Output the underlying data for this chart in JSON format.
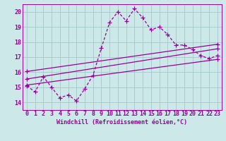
{
  "xlabel": "Windchill (Refroidissement éolien,°C)",
  "bg_color": "#cce8e8",
  "grid_color": "#aacccc",
  "line_color": "#990099",
  "ylim": [
    13.5,
    20.5
  ],
  "xlim": [
    -0.5,
    23.5
  ],
  "yticks": [
    14,
    15,
    16,
    17,
    18,
    19,
    20
  ],
  "xticks": [
    0,
    1,
    2,
    3,
    4,
    5,
    6,
    7,
    8,
    9,
    10,
    11,
    12,
    13,
    14,
    15,
    16,
    17,
    18,
    19,
    20,
    21,
    22,
    23
  ],
  "main_series": [
    15.1,
    14.7,
    15.7,
    15.0,
    14.3,
    14.5,
    14.1,
    14.9,
    15.8,
    17.6,
    19.3,
    20.0,
    19.4,
    20.2,
    19.6,
    18.8,
    19.0,
    18.5,
    17.8,
    17.8,
    17.5,
    17.1,
    16.9,
    17.1
  ],
  "trend1_x": [
    0,
    23
  ],
  "trend1_y": [
    15.55,
    17.55
  ],
  "trend2_x": [
    0,
    23
  ],
  "trend2_y": [
    16.05,
    17.85
  ],
  "trend3_x": [
    0,
    23
  ],
  "trend3_y": [
    15.15,
    16.85
  ],
  "xlabel_fontsize": 6,
  "tick_fontsize": 6
}
